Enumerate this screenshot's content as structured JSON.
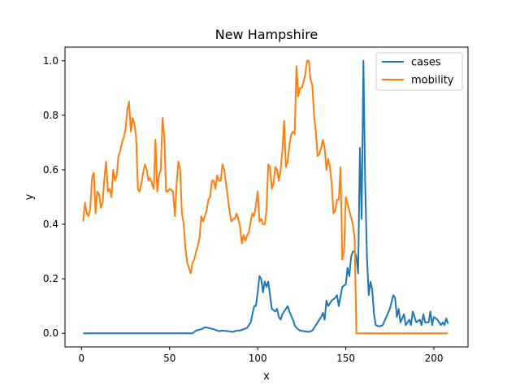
{
  "chart_data": {
    "type": "line",
    "title": "New Hampshire",
    "xlabel": "x",
    "ylabel": "y",
    "xlim": [
      -9.35,
      219.35
    ],
    "ylim": [
      -0.05,
      1.05
    ],
    "xticks": [
      0,
      50,
      100,
      150,
      200
    ],
    "xtick_labels": [
      "0",
      "50",
      "100",
      "150",
      "200"
    ],
    "yticks": [
      0.0,
      0.2,
      0.4,
      0.6,
      0.8,
      1.0
    ],
    "ytick_labels": [
      "0.0",
      "0.2",
      "0.4",
      "0.6",
      "0.8",
      "1.0"
    ],
    "grid": false,
    "legend_position": "upper-right",
    "series": [
      {
        "name": "cases",
        "color": "#1f77b4",
        "points": [
          [
            1,
            0
          ],
          [
            10,
            0
          ],
          [
            20,
            0
          ],
          [
            30,
            0
          ],
          [
            40,
            0
          ],
          [
            50,
            0
          ],
          [
            60,
            0
          ],
          [
            63,
            0
          ],
          [
            65,
            0.01
          ],
          [
            68,
            0.015
          ],
          [
            70,
            0.022
          ],
          [
            72,
            0.02
          ],
          [
            75,
            0.015
          ],
          [
            78,
            0.008
          ],
          [
            80,
            0.01
          ],
          [
            83,
            0.008
          ],
          [
            86,
            0.005
          ],
          [
            88,
            0.01
          ],
          [
            90,
            0.01
          ],
          [
            92,
            0.015
          ],
          [
            94,
            0.02
          ],
          [
            96,
            0.04
          ],
          [
            98,
            0.1
          ],
          [
            99,
            0.1
          ],
          [
            100,
            0.15
          ],
          [
            101,
            0.21
          ],
          [
            102,
            0.2
          ],
          [
            103,
            0.15
          ],
          [
            104,
            0.19
          ],
          [
            105,
            0.17
          ],
          [
            106,
            0.19
          ],
          [
            107,
            0.14
          ],
          [
            108,
            0.09
          ],
          [
            110,
            0.08
          ],
          [
            111,
            0.09
          ],
          [
            112,
            0.06
          ],
          [
            113,
            0.05
          ],
          [
            114,
            0.07
          ],
          [
            116,
            0.09
          ],
          [
            117,
            0.1
          ],
          [
            118,
            0.08
          ],
          [
            120,
            0.05
          ],
          [
            121,
            0.03
          ],
          [
            122,
            0.02
          ],
          [
            124,
            0.01
          ],
          [
            127,
            0.007
          ],
          [
            129,
            0.005
          ],
          [
            131,
            0.01
          ],
          [
            132,
            0.02
          ],
          [
            134,
            0.04
          ],
          [
            136,
            0.06
          ],
          [
            137,
            0.075
          ],
          [
            138,
            0.05
          ],
          [
            139,
            0.12
          ],
          [
            140,
            0.1
          ],
          [
            142,
            0.12
          ],
          [
            144,
            0.13
          ],
          [
            145,
            0.14
          ],
          [
            146,
            0.1
          ],
          [
            148,
            0.17
          ],
          [
            150,
            0.18
          ],
          [
            151,
            0.24
          ],
          [
            152,
            0.21
          ],
          [
            153,
            0.28
          ],
          [
            154,
            0.3
          ],
          [
            155,
            0.3
          ],
          [
            156,
            0.28
          ],
          [
            157,
            0.22
          ],
          [
            158,
            0.68
          ],
          [
            159,
            0.42
          ],
          [
            160,
            1.0
          ],
          [
            161,
            0.55
          ],
          [
            162,
            0.28
          ],
          [
            163,
            0.14
          ],
          [
            164,
            0.19
          ],
          [
            165,
            0.16
          ],
          [
            166,
            0.07
          ],
          [
            167,
            0.03
          ],
          [
            169,
            0.025
          ],
          [
            171,
            0.03
          ],
          [
            173,
            0.06
          ],
          [
            175,
            0.09
          ],
          [
            177,
            0.14
          ],
          [
            178,
            0.13
          ],
          [
            179,
            0.06
          ],
          [
            180,
            0.09
          ],
          [
            181,
            0.04
          ],
          [
            183,
            0.07
          ],
          [
            184,
            0.03
          ],
          [
            186,
            0.05
          ],
          [
            187,
            0.03
          ],
          [
            188,
            0.08
          ],
          [
            190,
            0.04
          ],
          [
            192,
            0.05
          ],
          [
            193,
            0.03
          ],
          [
            194,
            0.07
          ],
          [
            195,
            0.04
          ],
          [
            197,
            0.04
          ],
          [
            198,
            0.08
          ],
          [
            199,
            0.03
          ],
          [
            200,
            0.06
          ],
          [
            202,
            0.05
          ],
          [
            203,
            0.04
          ],
          [
            204,
            0.03
          ],
          [
            205,
            0.04
          ],
          [
            206,
            0.03
          ],
          [
            207,
            0.055
          ],
          [
            208,
            0.035
          ]
        ]
      },
      {
        "name": "mobility",
        "color": "#ff7f0e",
        "points": [
          [
            1,
            0.41
          ],
          [
            2,
            0.48
          ],
          [
            3,
            0.44
          ],
          [
            4,
            0.43
          ],
          [
            5,
            0.46
          ],
          [
            6,
            0.57
          ],
          [
            7,
            0.59
          ],
          [
            8,
            0.44
          ],
          [
            9,
            0.52
          ],
          [
            10,
            0.51
          ],
          [
            11,
            0.46
          ],
          [
            12,
            0.48
          ],
          [
            13,
            0.57
          ],
          [
            14,
            0.63
          ],
          [
            15,
            0.52
          ],
          [
            16,
            0.53
          ],
          [
            17,
            0.5
          ],
          [
            18,
            0.6
          ],
          [
            19,
            0.56
          ],
          [
            20,
            0.58
          ],
          [
            21,
            0.65
          ],
          [
            22,
            0.67
          ],
          [
            23,
            0.7
          ],
          [
            24,
            0.72
          ],
          [
            25,
            0.75
          ],
          [
            26,
            0.82
          ],
          [
            27,
            0.85
          ],
          [
            28,
            0.74
          ],
          [
            29,
            0.79
          ],
          [
            30,
            0.77
          ],
          [
            31,
            0.72
          ],
          [
            32,
            0.53
          ],
          [
            33,
            0.52
          ],
          [
            34,
            0.55
          ],
          [
            35,
            0.59
          ],
          [
            36,
            0.62
          ],
          [
            37,
            0.6
          ],
          [
            38,
            0.56
          ],
          [
            39,
            0.57
          ],
          [
            40,
            0.55
          ],
          [
            41,
            0.53
          ],
          [
            42,
            0.71
          ],
          [
            43,
            0.52
          ],
          [
            44,
            0.58
          ],
          [
            45,
            0.6
          ],
          [
            46,
            0.79
          ],
          [
            47,
            0.72
          ],
          [
            48,
            0.52
          ],
          [
            49,
            0.52
          ],
          [
            50,
            0.53
          ],
          [
            52,
            0.52
          ],
          [
            53,
            0.43
          ],
          [
            54,
            0.55
          ],
          [
            55,
            0.63
          ],
          [
            56,
            0.6
          ],
          [
            57,
            0.44
          ],
          [
            58,
            0.4
          ],
          [
            59,
            0.31
          ],
          [
            60,
            0.26
          ],
          [
            61,
            0.24
          ],
          [
            62,
            0.22
          ],
          [
            63,
            0.26
          ],
          [
            64,
            0.27
          ],
          [
            65,
            0.3
          ],
          [
            66,
            0.32
          ],
          [
            67,
            0.35
          ],
          [
            68,
            0.43
          ],
          [
            69,
            0.41
          ],
          [
            70,
            0.43
          ],
          [
            71,
            0.45
          ],
          [
            72,
            0.49
          ],
          [
            73,
            0.5
          ],
          [
            74,
            0.56
          ],
          [
            75,
            0.56
          ],
          [
            76,
            0.53
          ],
          [
            77,
            0.58
          ],
          [
            78,
            0.56
          ],
          [
            79,
            0.56
          ],
          [
            80,
            0.62
          ],
          [
            81,
            0.6
          ],
          [
            82,
            0.55
          ],
          [
            83,
            0.5
          ],
          [
            84,
            0.45
          ],
          [
            85,
            0.41
          ],
          [
            86,
            0.42
          ],
          [
            87,
            0.42
          ],
          [
            88,
            0.44
          ],
          [
            89,
            0.42
          ],
          [
            90,
            0.39
          ],
          [
            91,
            0.33
          ],
          [
            92,
            0.36
          ],
          [
            93,
            0.34
          ],
          [
            94,
            0.36
          ],
          [
            95,
            0.37
          ],
          [
            96,
            0.41
          ],
          [
            97,
            0.44
          ],
          [
            98,
            0.43
          ],
          [
            99,
            0.47
          ],
          [
            100,
            0.52
          ],
          [
            101,
            0.41
          ],
          [
            102,
            0.42
          ],
          [
            103,
            0.4
          ],
          [
            104,
            0.4
          ],
          [
            105,
            0.45
          ],
          [
            106,
            0.62
          ],
          [
            107,
            0.61
          ],
          [
            108,
            0.53
          ],
          [
            109,
            0.55
          ],
          [
            110,
            0.61
          ],
          [
            111,
            0.6
          ],
          [
            112,
            0.56
          ],
          [
            113,
            0.6
          ],
          [
            114,
            0.67
          ],
          [
            115,
            0.78
          ],
          [
            116,
            0.61
          ],
          [
            117,
            0.63
          ],
          [
            118,
            0.69
          ],
          [
            119,
            0.73
          ],
          [
            120,
            0.74
          ],
          [
            121,
            0.73
          ],
          [
            122,
            0.98
          ],
          [
            123,
            0.87
          ],
          [
            124,
            0.9
          ],
          [
            125,
            0.9
          ],
          [
            126,
            0.92
          ],
          [
            127,
            0.95
          ],
          [
            128,
            1.0
          ],
          [
            129,
            1.0
          ],
          [
            130,
            0.93
          ],
          [
            131,
            0.91
          ],
          [
            132,
            0.8
          ],
          [
            133,
            0.74
          ],
          [
            134,
            0.65
          ],
          [
            135,
            0.66
          ],
          [
            136,
            0.68
          ],
          [
            137,
            0.71
          ],
          [
            138,
            0.68
          ],
          [
            139,
            0.6
          ],
          [
            140,
            0.64
          ],
          [
            141,
            0.61
          ],
          [
            142,
            0.55
          ],
          [
            143,
            0.44
          ],
          [
            144,
            0.45
          ],
          [
            145,
            0.49
          ],
          [
            146,
            0.49
          ],
          [
            147,
            0.61
          ],
          [
            148,
            0.27
          ],
          [
            149,
            0.3
          ],
          [
            150,
            0.5
          ],
          [
            154,
            0.4
          ],
          [
            155,
            0.35
          ],
          [
            156,
            0
          ],
          [
            160,
            0
          ],
          [
            170,
            0
          ],
          [
            180,
            0
          ],
          [
            190,
            0
          ],
          [
            200,
            0
          ],
          [
            208,
            0
          ]
        ]
      }
    ]
  }
}
